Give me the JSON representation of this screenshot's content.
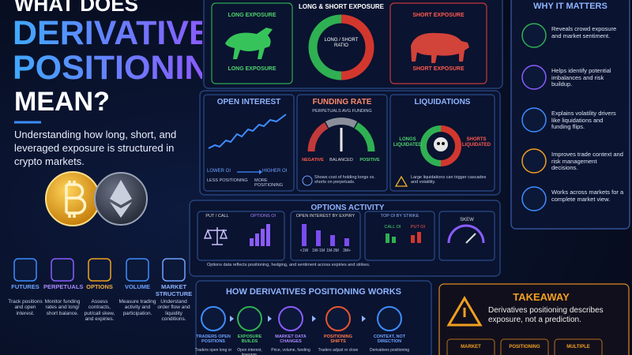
{
  "title": {
    "line1": "WHAT DOES",
    "line2": "DERIVATIVES",
    "line3": "POSITIONING",
    "line4": "MEAN?"
  },
  "subtitle": "Understanding how long, short, and leveraged exposure is structured in crypto markets.",
  "categories": [
    {
      "label": "FUTURES",
      "desc": "Track positions and open interest."
    },
    {
      "label": "PERPETUALS",
      "desc": "Monitor funding rates and long/ short balance."
    },
    {
      "label": "OPTIONS",
      "desc": "Assess contracts, put/call skew, and expiries."
    },
    {
      "label": "VOLUME",
      "desc": "Measure trading activity and participation."
    },
    {
      "label": "MARKET STRUCTURE",
      "desc": "Understand order flow and liquidity conditions."
    }
  ],
  "exposure": {
    "title": "LONG & SHORT EXPOSURE",
    "long_top": "LONG EXPOSURE",
    "long_bottom": "LONG EXPOSURE",
    "ratio": "LONG / SHORT RATIO",
    "short_top": "SHORT EXPOSURE",
    "short_bottom": "SHORT EXPOSURE"
  },
  "open_interest": {
    "title": "OPEN INTEREST",
    "lower": "LOWER OI",
    "higher": "HIGHER OI",
    "less": "LESS POSITIONING",
    "more": "MORE POSITIONING"
  },
  "funding_rate": {
    "title": "FUNDING RATE",
    "subtitle": "PERPETUALS AVG FUNDING",
    "negative": "NEGATIVE",
    "balanced": "BALANCED",
    "positive": "POSITIVE",
    "note": "Shows cost of holding longs vs. shorts on perpetuals."
  },
  "liquidations": {
    "title": "LIQUIDATIONS",
    "longs": "LONGS LIQUIDATED",
    "shorts": "SHORTS LIQUIDATED",
    "note": "Large liquidations can trigger cascades and volatility."
  },
  "why_it_matters": {
    "title": "WHY IT MATTERS",
    "items": [
      "Reveals crowd exposure and market sentiment.",
      "Helps identify potential imbalances and risk buildup.",
      "Explains volatility drivers like liquidations and funding flips.",
      "Improves trade context and risk management decisions.",
      "Works across markets for a complete market view."
    ]
  },
  "options_activity": {
    "title": "OPTIONS ACTIVITY",
    "put_call": "PUT / CALL",
    "options_oi": "OPTIONS OI",
    "by_expiry": "OPEN INTEREST BY EXPIRY",
    "expiries": [
      "<1W",
      "1W-1M",
      "1M-3M",
      "3M+"
    ],
    "by_strike": "TOP OI BY STRIKE",
    "call_oi": "CALL OI",
    "put_oi": "PUT OI",
    "skew": "SKEW",
    "note": "Options data reflects positioning, hedging, and sentiment across expiries and strikes."
  },
  "how_it_works": {
    "title": "HOW DERIVATIVES POSITIONING WORKS",
    "steps": [
      {
        "label": "TRADERS OPEN POSITIONS",
        "desc": "Traders open long or"
      },
      {
        "label": "EXPOSURE BUILDS",
        "desc": "Open interest, leverage,"
      },
      {
        "label": "MARKET DATA CHANGES",
        "desc": "Price, volume, funding"
      },
      {
        "label": "POSITIONING SHIFTS",
        "desc": "Traders adjust or close"
      },
      {
        "label": "CONTEXT, NOT DIRECTION",
        "desc": "Derivatives positioning"
      }
    ]
  },
  "takeaway": {
    "title": "TAKEAWAY",
    "text": "Derivatives positioning describes exposure, not a prediction.",
    "tags": [
      "MARKET",
      "POSITIONING",
      "MULTIPLE"
    ]
  }
}
